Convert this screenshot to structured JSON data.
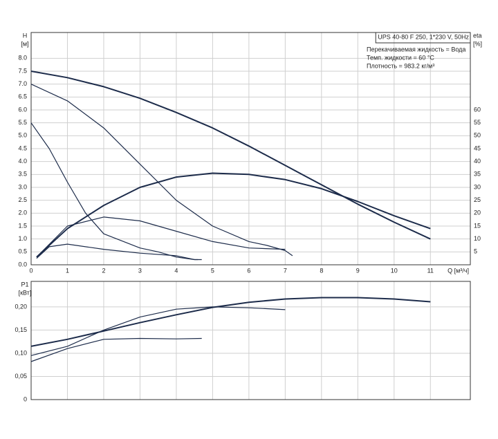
{
  "chart_data": [
    {
      "type": "line",
      "ylabel": "H",
      "yunit": "[м]",
      "y2label": "eta",
      "y2unit": "[%]",
      "xlabel": "Q [м³/ч]",
      "notes": [
        "UPS 40-80 F 250, 1*230 V, 50Hz",
        "Перекачиваемая жидкость = Вода",
        "Темп. жидкости = 60 °C",
        "Плотность = 983.2 кг/м³"
      ],
      "xlim": [
        0,
        12.1
      ],
      "xticks": [
        0,
        1,
        2,
        3,
        4,
        5,
        6,
        7,
        8,
        9,
        10,
        11
      ],
      "ylim": [
        0,
        9
      ],
      "yticks": [
        {
          "value": 0,
          "label": "0.0"
        },
        0.5,
        {
          "value": 1,
          "label": "1.0"
        },
        1.5,
        {
          "value": 2,
          "label": "2.0"
        },
        2.5,
        {
          "value": 3,
          "label": "3.0"
        },
        3.5,
        {
          "value": 4,
          "label": "4.0"
        },
        4.5,
        {
          "value": 5,
          "label": "5.0"
        },
        5.5,
        {
          "value": 6,
          "label": "6.0"
        },
        6.5,
        {
          "value": 7,
          "label": "7.0"
        },
        7.5,
        {
          "value": 8,
          "label": "8.0"
        }
      ],
      "y2lim": [
        0,
        90
      ],
      "y2ticks": [
        5,
        10,
        15,
        20,
        25,
        30,
        35,
        40,
        45,
        50,
        55,
        60
      ],
      "grid": true,
      "series": [
        {
          "color": "#1c2b4a",
          "x": [
            0,
            1,
            2,
            3,
            4,
            5,
            6,
            7,
            8,
            9,
            10,
            11
          ],
          "values": [
            7.5,
            7.25,
            6.9,
            6.45,
            5.9,
            5.3,
            4.6,
            3.85,
            3.1,
            2.35,
            1.65,
            1.0
          ]
        },
        {
          "color": "#1c2b4a",
          "x": [
            0,
            1,
            2,
            3,
            4,
            5,
            6,
            6.5,
            7,
            7.2
          ],
          "values": [
            7.0,
            6.35,
            5.3,
            3.9,
            2.5,
            1.5,
            0.9,
            0.75,
            0.55,
            0.35
          ]
        },
        {
          "color": "#1c2b4a",
          "x": [
            0,
            0.5,
            1,
            1.5,
            2,
            3,
            3.5,
            4,
            4.5,
            4.6
          ],
          "values": [
            5.5,
            4.5,
            3.2,
            2.0,
            1.2,
            0.65,
            0.5,
            0.3,
            0.2,
            0.2
          ]
        },
        {
          "color": "#1c2b4a",
          "axis": "y2",
          "x": [
            0.15,
            1,
            2,
            3,
            4,
            5,
            6,
            7,
            8,
            9,
            10,
            11
          ],
          "values": [
            3,
            14,
            23,
            30,
            34,
            35.5,
            35,
            33,
            29.5,
            24.5,
            19,
            14
          ]
        },
        {
          "color": "#1c2b4a",
          "axis": "y2",
          "x": [
            0.15,
            1,
            2,
            3,
            4,
            5,
            6,
            7
          ],
          "values": [
            3,
            15,
            18.5,
            17,
            13,
            9,
            6.5,
            6
          ]
        },
        {
          "color": "#1c2b4a",
          "axis": "y2",
          "x": [
            0.15,
            0.5,
            1,
            2,
            3,
            4,
            4.5,
            4.7
          ],
          "values": [
            2.5,
            7,
            8,
            6,
            4.5,
            3.5,
            2,
            2
          ]
        }
      ]
    },
    {
      "type": "line",
      "ylabel": "P1",
      "yunit": "[кВт]",
      "xlim": [
        0,
        12.1
      ],
      "ylim": [
        0,
        0.255
      ],
      "yticks": [
        0,
        {
          "value": 0.05,
          "label": "0,05"
        },
        {
          "value": 0.1,
          "label": "0,10"
        },
        {
          "value": 0.15,
          "label": "0,15"
        },
        {
          "value": 0.2,
          "label": "0,20"
        }
      ],
      "grid": true,
      "series": [
        {
          "color": "#1c2b4a",
          "x": [
            0,
            1,
            2,
            3,
            4,
            5,
            6,
            7,
            8,
            9,
            10,
            11
          ],
          "values": [
            0.115,
            0.13,
            0.148,
            0.166,
            0.183,
            0.199,
            0.21,
            0.217,
            0.22,
            0.22,
            0.217,
            0.211
          ]
        },
        {
          "color": "#1c2b4a",
          "x": [
            0,
            1,
            2,
            3,
            4,
            5,
            6,
            7
          ],
          "values": [
            0.095,
            0.115,
            0.15,
            0.178,
            0.195,
            0.2,
            0.198,
            0.194
          ]
        },
        {
          "color": "#1c2b4a",
          "x": [
            0,
            1,
            2,
            3,
            4,
            4.7
          ],
          "values": [
            0.082,
            0.11,
            0.13,
            0.132,
            0.131,
            0.132
          ]
        }
      ]
    }
  ]
}
